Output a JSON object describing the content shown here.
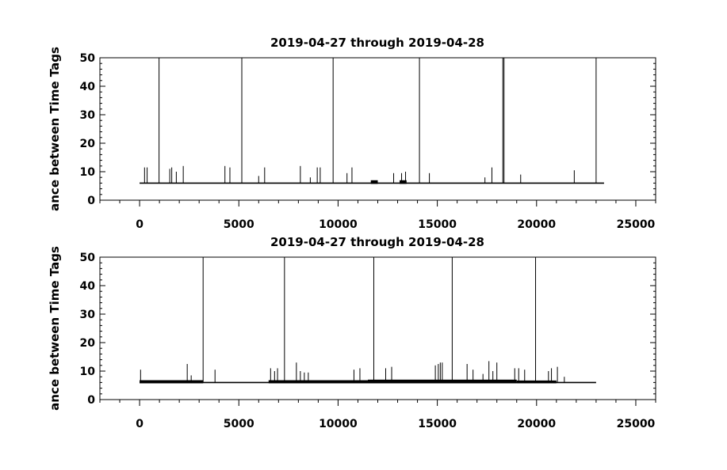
{
  "chart_data": [
    {
      "type": "line",
      "title": "2019-04-27 through 2019-04-28",
      "ylabel": "ance between Time Tags",
      "xlabel": "",
      "xlim": [
        -2000,
        26000
      ],
      "ylim": [
        0,
        50
      ],
      "x_ticks": [
        0,
        5000,
        10000,
        15000,
        20000,
        25000
      ],
      "x_tick_labels": [
        "0",
        "5000",
        "10000",
        "15000",
        "20000",
        "25000"
      ],
      "y_ticks": [
        0,
        10,
        20,
        30,
        40,
        50
      ],
      "y_tick_labels": [
        "0",
        "10",
        "20",
        "30",
        "40",
        "50"
      ],
      "grid": false,
      "line_color": "#000000",
      "series": [
        {
          "baseline": 6,
          "x_range": [
            0,
            23400
          ],
          "spikes": [
            {
              "x": 250,
              "y": 11.5
            },
            {
              "x": 380,
              "y": 11.5
            },
            {
              "x": 980,
              "y": 50
            },
            {
              "x": 1520,
              "y": 11
            },
            {
              "x": 1620,
              "y": 11.5
            },
            {
              "x": 1850,
              "y": 10
            },
            {
              "x": 2200,
              "y": 12
            },
            {
              "x": 4300,
              "y": 12
            },
            {
              "x": 4550,
              "y": 11.5
            },
            {
              "x": 5150,
              "y": 50
            },
            {
              "x": 6000,
              "y": 8.5
            },
            {
              "x": 6300,
              "y": 11.5
            },
            {
              "x": 8100,
              "y": 12
            },
            {
              "x": 8600,
              "y": 8
            },
            {
              "x": 8950,
              "y": 11.5
            },
            {
              "x": 9100,
              "y": 11.5
            },
            {
              "x": 9750,
              "y": 50
            },
            {
              "x": 10450,
              "y": 9.5
            },
            {
              "x": 10700,
              "y": 11.5
            },
            {
              "x": 12800,
              "y": 9.5
            },
            {
              "x": 13200,
              "y": 9.5
            },
            {
              "x": 13400,
              "y": 10
            },
            {
              "x": 14600,
              "y": 9.5
            },
            {
              "x": 14100,
              "y": 50
            },
            {
              "x": 17400,
              "y": 8
            },
            {
              "x": 17750,
              "y": 11.5
            },
            {
              "x": 18300,
              "y": 50
            },
            {
              "x": 18360,
              "y": 50
            },
            {
              "x": 19200,
              "y": 9
            },
            {
              "x": 21900,
              "y": 10.5
            },
            {
              "x": 23000,
              "y": 50
            }
          ],
          "thick_segments": [
            {
              "x_start": 11650,
              "x_end": 12000,
              "y": 7
            },
            {
              "x_start": 13100,
              "x_end": 13450,
              "y": 7
            }
          ]
        }
      ]
    },
    {
      "type": "line",
      "title": "2019-04-27 through 2019-04-28",
      "ylabel": "ance between Time Tags",
      "xlabel": "",
      "xlim": [
        -2000,
        26000
      ],
      "ylim": [
        0,
        50
      ],
      "x_ticks": [
        0,
        5000,
        10000,
        15000,
        20000,
        25000
      ],
      "x_tick_labels": [
        "0",
        "5000",
        "10000",
        "15000",
        "20000",
        "25000"
      ],
      "y_ticks": [
        0,
        10,
        20,
        30,
        40,
        50
      ],
      "y_tick_labels": [
        "0",
        "10",
        "20",
        "30",
        "40",
        "50"
      ],
      "grid": false,
      "line_color": "#000000",
      "series": [
        {
          "baseline": 6,
          "x_range": [
            0,
            23000
          ],
          "spikes": [
            {
              "x": 50,
              "y": 10.5
            },
            {
              "x": 2400,
              "y": 12.5
            },
            {
              "x": 2600,
              "y": 8.5
            },
            {
              "x": 3200,
              "y": 50
            },
            {
              "x": 3800,
              "y": 10.5
            },
            {
              "x": 6600,
              "y": 11
            },
            {
              "x": 6800,
              "y": 10
            },
            {
              "x": 6950,
              "y": 11
            },
            {
              "x": 7300,
              "y": 50
            },
            {
              "x": 7900,
              "y": 13
            },
            {
              "x": 8100,
              "y": 10
            },
            {
              "x": 8300,
              "y": 9.5
            },
            {
              "x": 8500,
              "y": 9.5
            },
            {
              "x": 10800,
              "y": 10.5
            },
            {
              "x": 11100,
              "y": 11
            },
            {
              "x": 11800,
              "y": 50
            },
            {
              "x": 12400,
              "y": 11
            },
            {
              "x": 12700,
              "y": 11.5
            },
            {
              "x": 14900,
              "y": 12
            },
            {
              "x": 15050,
              "y": 12.5
            },
            {
              "x": 15150,
              "y": 13
            },
            {
              "x": 15250,
              "y": 13
            },
            {
              "x": 15750,
              "y": 50
            },
            {
              "x": 16500,
              "y": 12.5
            },
            {
              "x": 16800,
              "y": 10.5
            },
            {
              "x": 17300,
              "y": 9
            },
            {
              "x": 17600,
              "y": 13.5
            },
            {
              "x": 17800,
              "y": 10
            },
            {
              "x": 18000,
              "y": 13
            },
            {
              "x": 18900,
              "y": 11
            },
            {
              "x": 19100,
              "y": 11
            },
            {
              "x": 19400,
              "y": 10.5
            },
            {
              "x": 19950,
              "y": 50
            },
            {
              "x": 20600,
              "y": 10
            },
            {
              "x": 20750,
              "y": 11
            },
            {
              "x": 21050,
              "y": 11.5
            },
            {
              "x": 21400,
              "y": 8
            }
          ],
          "thick_segments": [
            {
              "x_start": 0,
              "x_end": 3200,
              "y": 6.8
            },
            {
              "x_start": 6500,
              "x_end": 11500,
              "y": 6.8
            },
            {
              "x_start": 11500,
              "x_end": 19000,
              "y": 7
            },
            {
              "x_start": 19000,
              "x_end": 21000,
              "y": 6.7
            }
          ]
        }
      ]
    }
  ]
}
